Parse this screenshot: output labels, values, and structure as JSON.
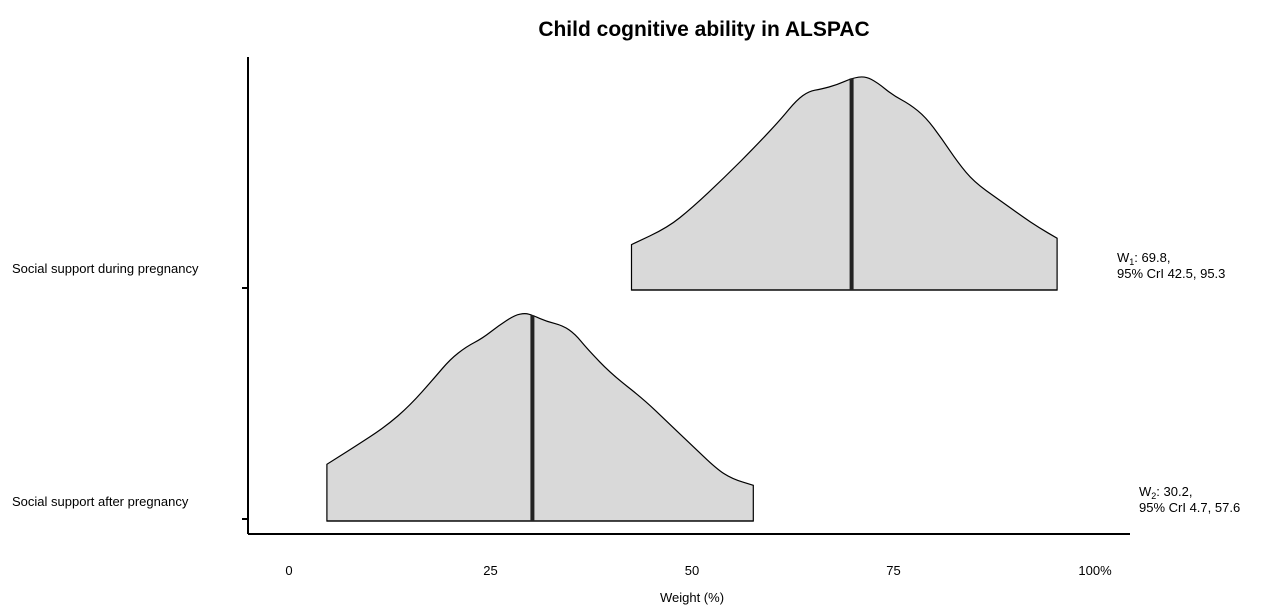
{
  "chart_data": {
    "type": "density",
    "title": "Child cognitive ability in ALSPAC",
    "xlabel": "Weight (%)",
    "ylabel": "",
    "xlim": [
      0,
      100
    ],
    "x_ticks": [
      {
        "value": 0,
        "label": "0"
      },
      {
        "value": 25,
        "label": "25"
      },
      {
        "value": 50,
        "label": "50"
      },
      {
        "value": 75,
        "label": "75"
      },
      {
        "value": 100,
        "label": "100%"
      }
    ],
    "grid": false,
    "legend": "none",
    "fill_color": "#d9d9d9",
    "series": [
      {
        "name": "Social support during pregnancy",
        "median": 69.8,
        "ci": [
          42.5,
          95.3
        ],
        "annotation_label": "W",
        "annotation_sub": "1",
        "annotation_value": ": 69.8,",
        "annotation_ci": "95% CrI  42.5, 95.3",
        "density": [
          [
            42.5,
            0.21
          ],
          [
            47.0,
            0.29
          ],
          [
            50.0,
            0.38
          ],
          [
            54.0,
            0.52
          ],
          [
            58.0,
            0.67
          ],
          [
            61.0,
            0.79
          ],
          [
            63.0,
            0.88
          ],
          [
            64.5,
            0.92
          ],
          [
            66.0,
            0.93
          ],
          [
            68.0,
            0.95
          ],
          [
            69.8,
            0.98
          ],
          [
            71.5,
            0.99
          ],
          [
            73.0,
            0.96
          ],
          [
            75.0,
            0.9
          ],
          [
            77.0,
            0.86
          ],
          [
            79.0,
            0.8
          ],
          [
            81.0,
            0.7
          ],
          [
            83.0,
            0.59
          ],
          [
            85.0,
            0.5
          ],
          [
            88.0,
            0.42
          ],
          [
            91.0,
            0.34
          ],
          [
            93.0,
            0.29
          ],
          [
            95.3,
            0.24
          ]
        ]
      },
      {
        "name": "Social support after pregnancy",
        "median": 30.2,
        "ci": [
          4.7,
          57.6
        ],
        "annotation_label": "W",
        "annotation_sub": "2",
        "annotation_value": ": 30.2,",
        "annotation_ci": "95% CrI  4.7, 57.6",
        "density": [
          [
            4.7,
            0.27
          ],
          [
            8.0,
            0.35
          ],
          [
            12.0,
            0.45
          ],
          [
            15.0,
            0.55
          ],
          [
            18.0,
            0.68
          ],
          [
            20.0,
            0.77
          ],
          [
            22.0,
            0.83
          ],
          [
            24.0,
            0.87
          ],
          [
            26.0,
            0.93
          ],
          [
            28.0,
            0.98
          ],
          [
            29.3,
            0.99
          ],
          [
            30.2,
            0.98
          ],
          [
            32.0,
            0.95
          ],
          [
            34.0,
            0.93
          ],
          [
            35.5,
            0.89
          ],
          [
            37.0,
            0.82
          ],
          [
            40.0,
            0.7
          ],
          [
            44.0,
            0.58
          ],
          [
            47.0,
            0.47
          ],
          [
            50.0,
            0.36
          ],
          [
            53.0,
            0.25
          ],
          [
            55.0,
            0.2
          ],
          [
            57.6,
            0.17
          ]
        ]
      }
    ]
  }
}
